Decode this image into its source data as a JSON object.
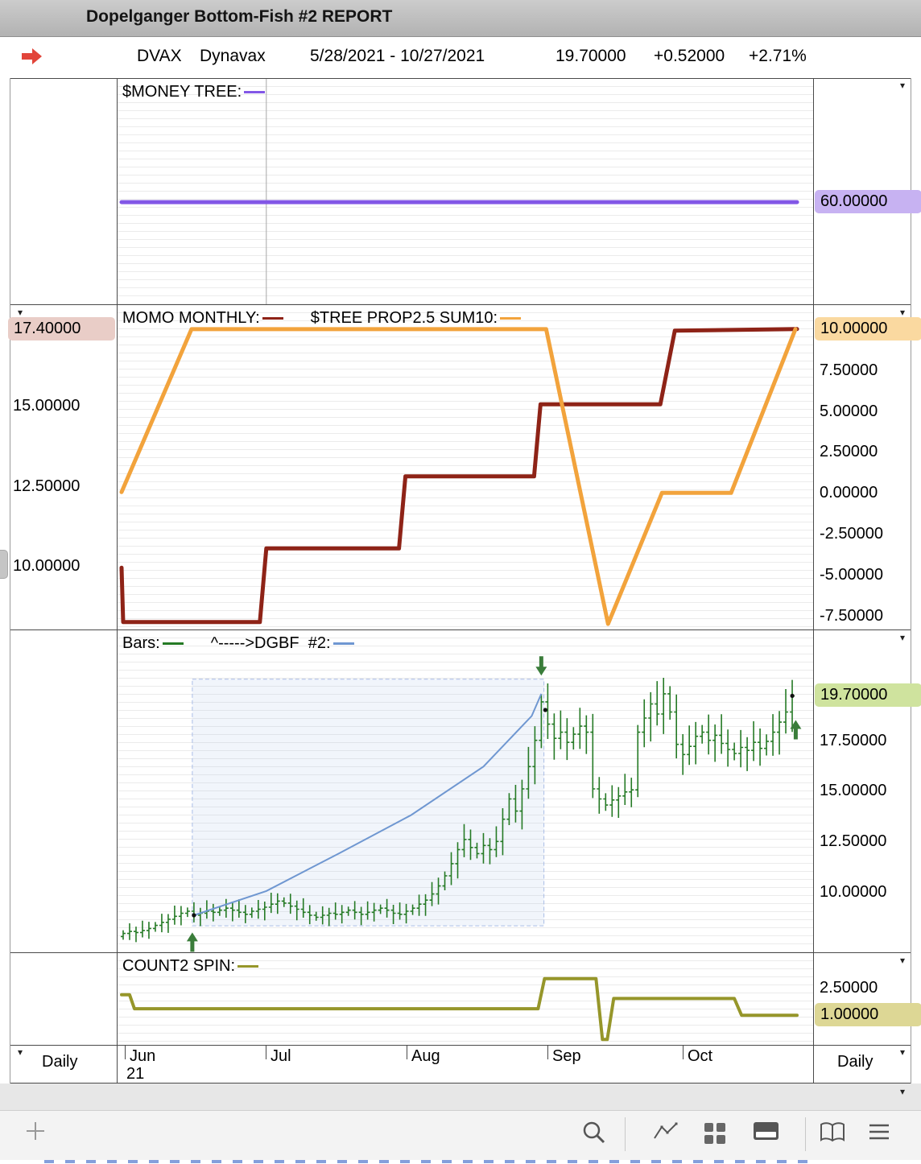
{
  "window": {
    "title": "Dopelganger Bottom-Fish #2 REPORT"
  },
  "header": {
    "symbol": "DVAX",
    "company": "Dynavax",
    "date_range": "5/28/2021 - 10/27/2021",
    "last": "19.70000",
    "change": "+0.52000",
    "change_pct": "+2.71%",
    "arrow_color": "#e2453a"
  },
  "timeframe": {
    "left": "Daily",
    "right": "Daily"
  },
  "x_axis": {
    "months": [
      {
        "label": "Jun",
        "sub": "21",
        "f": 0.0116
      },
      {
        "label": "Jul",
        "f": 0.2139
      },
      {
        "label": "Aug",
        "f": 0.4162
      },
      {
        "label": "Sep",
        "f": 0.6185
      },
      {
        "label": "Oct",
        "f": 0.8127
      }
    ]
  },
  "toolbar": {
    "icons": [
      "plus-icon",
      "search-icon",
      "trend-icon",
      "grid-icon",
      "panel-icon",
      "book-icon",
      "list-icon"
    ]
  },
  "chart_data": [
    {
      "id": "p1",
      "type": "line",
      "title_legend": [
        {
          "text": "$MONEY TREE:",
          "color": "#8257e6"
        }
      ],
      "axes": {
        "right": {
          "ylim": [
            31,
            95
          ],
          "ticks": [
            {
              "v": 60,
              "label": "60.00000",
              "highlight": "#c7b2f2"
            }
          ]
        }
      },
      "vgrid": [
        0.2139
      ],
      "series": [
        {
          "name": "money-tree",
          "color": "#8257e6",
          "width": 5,
          "axis": "right",
          "points": [
            [
              0.0058,
              60
            ],
            [
              0.9769,
              60
            ]
          ]
        }
      ]
    },
    {
      "id": "p2",
      "type": "line",
      "title_legend": [
        {
          "text": "MOMO MONTHLY:",
          "color": "#8e2317"
        },
        {
          "text": "$TREE PROP2.5 SUM10:",
          "color": "#f2a33c"
        }
      ],
      "axes": {
        "left": {
          "ylim": [
            8.02,
            18.15
          ],
          "ticks": [
            {
              "v": 17.4,
              "label": "17.40000",
              "highlight": "#e9cdc7"
            },
            {
              "v": 15,
              "label": "15.00000"
            },
            {
              "v": 12.5,
              "label": "12.50000"
            },
            {
              "v": 10,
              "label": "10.00000"
            }
          ]
        },
        "right": {
          "ylim": [
            -8.34,
            11.47
          ],
          "ticks": [
            {
              "v": 10,
              "label": "10.00000",
              "highlight": "#fad9a0"
            },
            {
              "v": 7.5,
              "label": "7.50000"
            },
            {
              "v": 5,
              "label": "5.00000"
            },
            {
              "v": 2.5,
              "label": "2.50000"
            },
            {
              "v": 0,
              "label": "0.00000"
            },
            {
              "v": -2.5,
              "label": "-2.50000"
            },
            {
              "v": -5,
              "label": "-5.00000"
            },
            {
              "v": -7.5,
              "label": "-7.50000"
            }
          ]
        }
      },
      "series": [
        {
          "name": "momo-monthly",
          "color": "#8e2317",
          "width": 5,
          "axis": "left",
          "points": [
            [
              0.0058,
              9.95
            ],
            [
              0.0081,
              8.25
            ],
            [
              0.2046,
              8.25
            ],
            [
              0.2139,
              10.55
            ],
            [
              0.4046,
              10.55
            ],
            [
              0.4139,
              12.8
            ],
            [
              0.5988,
              12.8
            ],
            [
              0.6081,
              15.05
            ],
            [
              0.7803,
              15.05
            ],
            [
              0.8012,
              17.35
            ],
            [
              0.9769,
              17.4
            ]
          ]
        },
        {
          "name": "tree-prop-sum10",
          "color": "#f2a33c",
          "width": 5,
          "axis": "right",
          "points": [
            [
              0.0058,
              0.05
            ],
            [
              0.1064,
              10
            ],
            [
              0.6162,
              10
            ],
            [
              0.7052,
              -8.0
            ],
            [
              0.7827,
              0.0
            ],
            [
              0.8821,
              0.0
            ],
            [
              0.9746,
              10
            ]
          ]
        }
      ]
    },
    {
      "id": "p3",
      "type": "bars",
      "title_legend": [
        {
          "text": "Bars:",
          "color": "#257a25"
        },
        {
          "text": "^----->DGBF  #2:",
          "color": "#6f97d1"
        }
      ],
      "axes": {
        "right": {
          "ylim": [
            7.02,
            22.94
          ],
          "ticks": [
            {
              "v": 19.7,
              "label": "19.70000",
              "highlight": "#cfe39e"
            },
            {
              "v": 17.5,
              "label": "17.50000"
            },
            {
              "v": 15,
              "label": "15.00000"
            },
            {
              "v": 12.5,
              "label": "12.50000"
            },
            {
              "v": 10,
              "label": "10.00000"
            }
          ]
        }
      },
      "bars": {
        "color": "#257a25",
        "x_start_f": 0.0081,
        "x_step_f": 0.009249,
        "closes": [
          7.95,
          8.05,
          8.0,
          8.1,
          8.2,
          8.35,
          8.5,
          8.65,
          8.8,
          8.95,
          9.05,
          8.85,
          8.95,
          9.05,
          9.0,
          9.1,
          9.2,
          9.1,
          9.0,
          8.9,
          9.05,
          9.15,
          9.25,
          9.4,
          9.55,
          9.45,
          9.3,
          9.15,
          9.0,
          8.85,
          8.75,
          8.85,
          8.95,
          8.9,
          9.0,
          9.1,
          9.0,
          8.9,
          9.0,
          9.1,
          9.2,
          9.1,
          8.95,
          8.9,
          9.05,
          9.2,
          9.4,
          9.6,
          9.9,
          10.3,
          10.8,
          11.4,
          12.1,
          12.6,
          12.2,
          11.9,
          12.3,
          12.1,
          12.5,
          13.6,
          14.6,
          14.0,
          15.1,
          16.2,
          17.5,
          19.4,
          18.3,
          17.6,
          17.9,
          17.4,
          17.8,
          18.2,
          17.9,
          15.1,
          14.6,
          14.3,
          14.55,
          14.75,
          14.95,
          15.05,
          17.9,
          18.6,
          19.3,
          18.8,
          19.8,
          18.9,
          17.3,
          16.8,
          17.2,
          17.7,
          17.9,
          17.5,
          17.75,
          17.35,
          17.05,
          16.85,
          17.15,
          17.0,
          17.4,
          17.1,
          17.45,
          17.9,
          18.4,
          18.9,
          19.7
        ]
      },
      "trend_line": {
        "color": "#6f97d1",
        "width": 2,
        "points": [
          [
            0.1098,
            8.85
          ],
          [
            0.2139,
            10.05
          ],
          [
            0.3179,
            11.9
          ],
          [
            0.422,
            13.8
          ],
          [
            0.526,
            16.2
          ],
          [
            0.5954,
            18.7
          ],
          [
            0.6092,
            19.8
          ]
        ]
      },
      "selection": {
        "f1": 0.1075,
        "f2": 0.613,
        "v1": 20.52,
        "v2": 8.33,
        "fill": "rgba(160,185,230,0.15)",
        "stroke": "#a9bce6"
      },
      "arrows": [
        {
          "dir": "down",
          "f": 0.6092,
          "v": 20.7,
          "color": "#3a7d3a"
        },
        {
          "dir": "up",
          "f": 0.1075,
          "v": 8.0,
          "color": "#3a7d3a"
        },
        {
          "dir": "up",
          "f": 0.975,
          "v": 18.5,
          "color": "#3a7d3a"
        }
      ],
      "dots": [
        [
          0.1098,
          8.85
        ],
        [
          0.615,
          19.0
        ],
        [
          0.97,
          19.7
        ]
      ]
    },
    {
      "id": "p4",
      "type": "line",
      "title_legend": [
        {
          "text": "COUNT2 SPIN:",
          "color": "#96962a"
        }
      ],
      "axes": {
        "right": {
          "ylim": [
            -0.59,
            4.34
          ],
          "ticks": [
            {
              "v": 2.5,
              "label": "2.50000"
            },
            {
              "v": 1.0,
              "label": "1.00000",
              "highlight": "#ddd795"
            }
          ]
        }
      },
      "series": [
        {
          "name": "count2-spin",
          "color": "#96962a",
          "width": 4,
          "axis": "right",
          "points": [
            [
              0.0058,
              2.1
            ],
            [
              0.0173,
              2.1
            ],
            [
              0.0243,
              1.35
            ],
            [
              0.6046,
              1.35
            ],
            [
              0.6139,
              2.97
            ],
            [
              0.6879,
              2.97
            ],
            [
              0.6971,
              -0.3
            ],
            [
              0.7041,
              -0.3
            ],
            [
              0.7133,
              1.9
            ],
            [
              0.8867,
              1.9
            ],
            [
              0.8971,
              1.0
            ],
            [
              0.9769,
              1.0
            ]
          ]
        }
      ]
    }
  ]
}
